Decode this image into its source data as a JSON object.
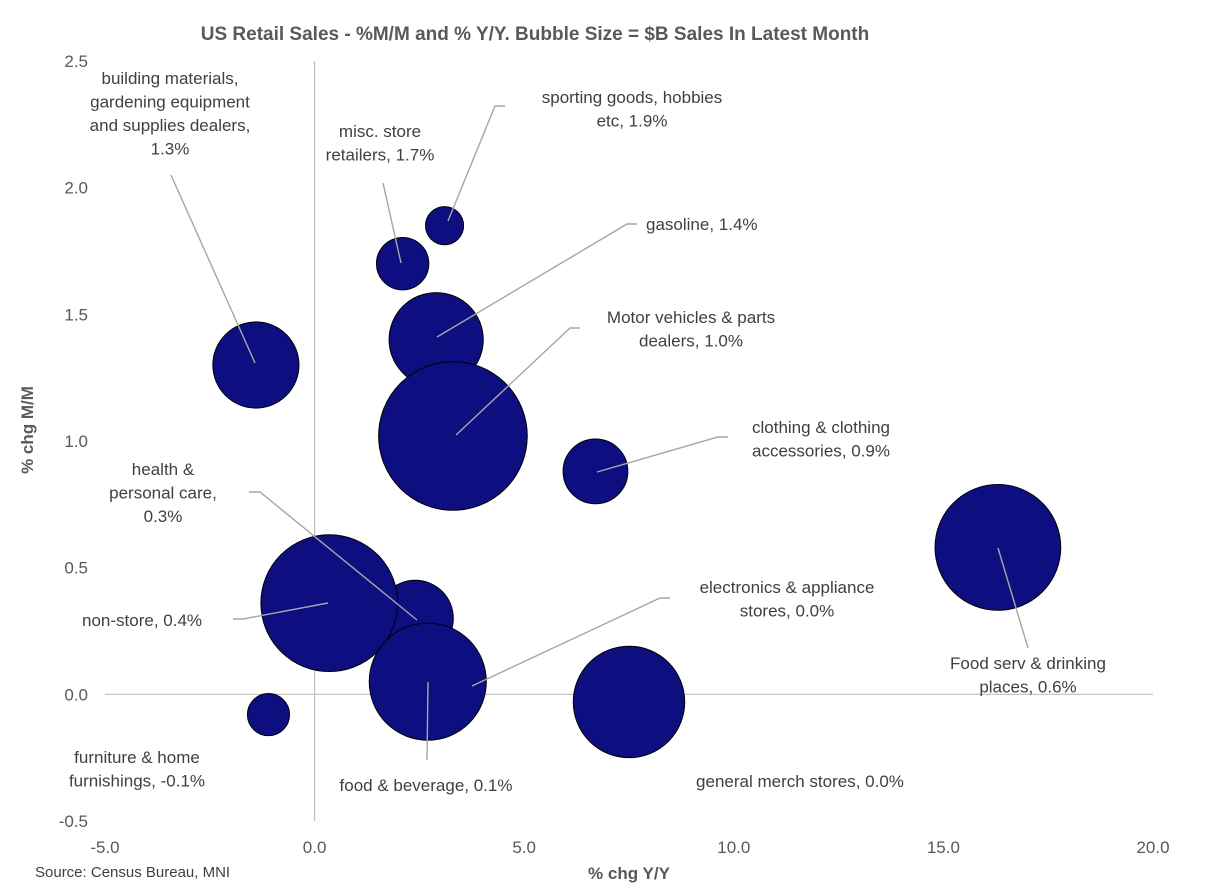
{
  "chart_data": {
    "type": "scatter",
    "subtype": "bubble",
    "title": "US Retail Sales - %M/M  and % Y/Y. Bubble Size = $B Sales In Latest Month",
    "xlabel": "% chg Y/Y",
    "ylabel": "% chg M/M",
    "xlim": [
      -5,
      20
    ],
    "ylim": [
      -0.5,
      2.5
    ],
    "x_ticks": [
      "-5.0",
      "0.0",
      "5.0",
      "10.0",
      "15.0",
      "20.0"
    ],
    "y_ticks": [
      "-0.5",
      "0.0",
      "0.5",
      "1.0",
      "1.5",
      "2.0",
      "2.5"
    ],
    "grid": false,
    "bubble_color": "#0d0f80",
    "leader_color": "#a6a6a6",
    "source": "Source: Census Bureau, MNI",
    "points": [
      {
        "name": "building materials, gardening equipment and supplies dealers",
        "x": -1.4,
        "y": 1.3,
        "size": 46,
        "label_lines": [
          "building materials,",
          "gardening equipment",
          "and supplies dealers,",
          "1.3%"
        ]
      },
      {
        "name": "misc. store retailers",
        "x": 2.1,
        "y": 1.7,
        "size": 17,
        "label_lines": [
          "misc. store",
          "retailers, 1.7%"
        ]
      },
      {
        "name": "sporting goods, hobbies etc",
        "x": 3.1,
        "y": 1.85,
        "size": 9,
        "label_lines": [
          "sporting goods, hobbies",
          "etc, 1.9%"
        ]
      },
      {
        "name": "gasoline",
        "x": 2.9,
        "y": 1.4,
        "size": 55,
        "label_lines": [
          "gasoline, 1.4%"
        ]
      },
      {
        "name": "Motor vehicles & parts dealers",
        "x": 3.3,
        "y": 1.02,
        "size": 137,
        "label_lines": [
          "Motor vehicles & parts",
          "dealers, 1.0%"
        ]
      },
      {
        "name": "clothing & clothing accessories",
        "x": 6.7,
        "y": 0.88,
        "size": 26,
        "label_lines": [
          "clothing & clothing",
          "accessories, 0.9%"
        ]
      },
      {
        "name": "health & personal care",
        "x": 2.4,
        "y": 0.3,
        "size": 36,
        "label_lines": [
          "health &",
          "personal care,",
          "0.3%"
        ]
      },
      {
        "name": "non-store",
        "x": 0.35,
        "y": 0.36,
        "size": 116,
        "label_lines": [
          "non-store, 0.4%"
        ]
      },
      {
        "name": "electronics & appliance stores",
        "x": 2.7,
        "y": 0.05,
        "size": 85,
        "label_lines": [
          "electronics & appliance",
          "stores, 0.0%"
        ]
      },
      {
        "name": "food & beverage",
        "x": 2.7,
        "y": 0.05,
        "size": 0,
        "label_lines": [
          "food & beverage, 0.1%"
        ]
      },
      {
        "name": "furniture & home furnishings",
        "x": -1.1,
        "y": -0.08,
        "size": 11,
        "label_lines": [
          "furniture & home",
          "furnishings, -0.1%"
        ]
      },
      {
        "name": "general merch stores",
        "x": 7.5,
        "y": -0.03,
        "size": 77,
        "label_lines": [
          "general merch stores, 0.0%"
        ]
      },
      {
        "name": "Food serv & drinking places",
        "x": 16.3,
        "y": 0.58,
        "size": 98,
        "label_lines": [
          "Food serv & drinking",
          "places, 0.6%"
        ]
      }
    ]
  }
}
